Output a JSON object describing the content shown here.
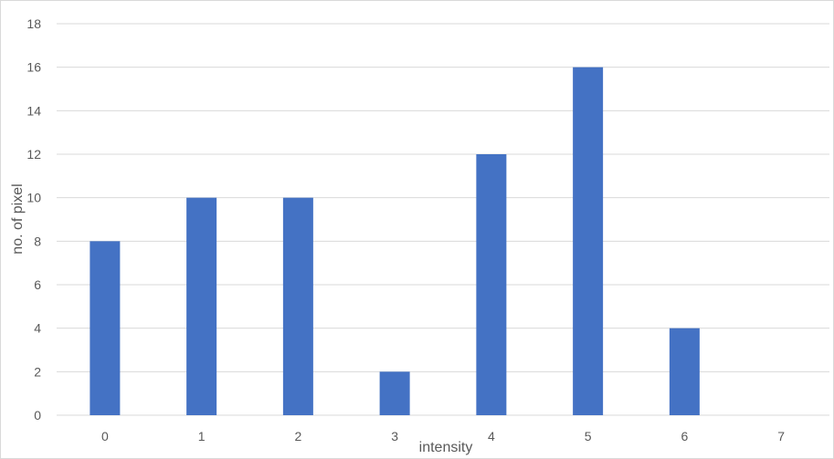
{
  "chart_data": {
    "type": "bar",
    "categories": [
      "0",
      "1",
      "2",
      "3",
      "4",
      "5",
      "6",
      "7"
    ],
    "values": [
      8,
      10,
      10,
      2,
      12,
      16,
      4,
      0
    ],
    "title": "",
    "xlabel": "intensity",
    "ylabel": "no. of pixel",
    "ylim": [
      0,
      18
    ],
    "yticks": [
      0,
      2,
      4,
      6,
      8,
      10,
      12,
      14,
      16,
      18
    ],
    "grid": true,
    "legend": "none",
    "bar_color": "#4472C4",
    "grid_color": "#d9d9d9"
  }
}
